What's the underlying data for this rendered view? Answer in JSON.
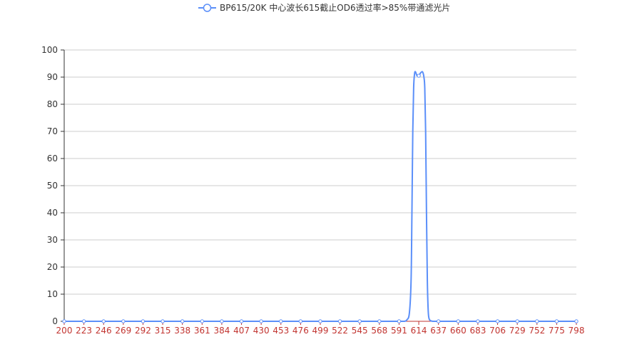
{
  "chart_data": {
    "type": "line",
    "title": "",
    "xlabel": "",
    "ylabel": "",
    "legend": {
      "position": "top-center"
    },
    "grid": true,
    "ylim": [
      0,
      100
    ],
    "y_ticks": [
      0,
      10,
      20,
      30,
      40,
      50,
      60,
      70,
      80,
      90,
      100
    ],
    "x_tick_labels": [
      "200",
      "223",
      "246",
      "269",
      "292",
      "315",
      "338",
      "361",
      "384",
      "407",
      "430",
      "453",
      "476",
      "499",
      "522",
      "545",
      "568",
      "591",
      "614",
      "637",
      "660",
      "683",
      "706",
      "729",
      "752",
      "775",
      "798"
    ],
    "xlim": [
      200,
      798
    ],
    "series": [
      {
        "name": "BP615/20K 中心波长615截止OD6透过率>85%带通滤光片",
        "color": "#5b8ff9",
        "x": [
          200,
          223,
          246,
          269,
          292,
          315,
          338,
          361,
          384,
          407,
          430,
          453,
          476,
          499,
          522,
          545,
          568,
          591,
          597,
          600,
          603,
          605,
          606,
          607,
          608,
          609,
          610,
          612,
          614,
          616,
          618,
          619,
          620,
          621,
          622,
          623,
          624,
          625,
          626,
          628,
          631,
          637,
          660,
          683,
          706,
          729,
          752,
          775,
          798
        ],
        "y": [
          0,
          0,
          0,
          0,
          0,
          0,
          0,
          0,
          0,
          0,
          0,
          0,
          0,
          0,
          0,
          0,
          0,
          0,
          0,
          0.5,
          3,
          15,
          40,
          70,
          86,
          91,
          92,
          90.5,
          90.5,
          91.5,
          92,
          91.5,
          90,
          86,
          70,
          40,
          15,
          4,
          1,
          0.2,
          0,
          0,
          0,
          0,
          0,
          0,
          0,
          0,
          0
        ]
      }
    ]
  }
}
